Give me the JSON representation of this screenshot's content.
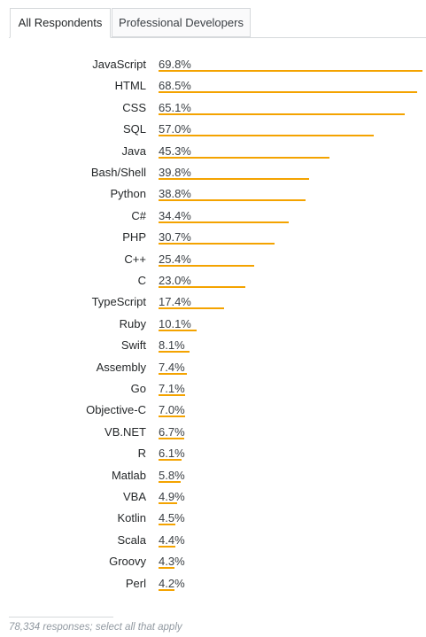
{
  "tabs": [
    {
      "label": "All Respondents",
      "active": true
    },
    {
      "label": "Professional Developers",
      "active": false
    }
  ],
  "colors": {
    "bar": "#f4a300",
    "border": "#d6d9dc"
  },
  "footer": {
    "text": "78,334 responses; select all that apply"
  },
  "chart_data": {
    "type": "bar",
    "orientation": "horizontal",
    "categories": [
      "JavaScript",
      "HTML",
      "CSS",
      "SQL",
      "Java",
      "Bash/Shell",
      "Python",
      "C#",
      "PHP",
      "C++",
      "C",
      "TypeScript",
      "Ruby",
      "Swift",
      "Assembly",
      "Go",
      "Objective-C",
      "VB.NET",
      "R",
      "Matlab",
      "VBA",
      "Kotlin",
      "Scala",
      "Groovy",
      "Perl"
    ],
    "values": [
      69.8,
      68.5,
      65.1,
      57.0,
      45.3,
      39.8,
      38.8,
      34.4,
      30.7,
      25.4,
      23.0,
      17.4,
      10.1,
      8.1,
      7.4,
      7.1,
      7.0,
      6.7,
      6.1,
      5.8,
      4.9,
      4.5,
      4.4,
      4.3,
      4.2
    ],
    "value_labels": [
      "69.8%",
      "68.5%",
      "65.1%",
      "57.0%",
      "45.3%",
      "39.8%",
      "38.8%",
      "34.4%",
      "30.7%",
      "25.4%",
      "23.0%",
      "17.4%",
      "10.1%",
      "8.1%",
      "7.4%",
      "7.1%",
      "7.0%",
      "6.7%",
      "6.1%",
      "5.8%",
      "4.9%",
      "4.5%",
      "4.4%",
      "4.3%",
      "4.2%"
    ],
    "xlim": [
      0,
      69.8
    ]
  }
}
